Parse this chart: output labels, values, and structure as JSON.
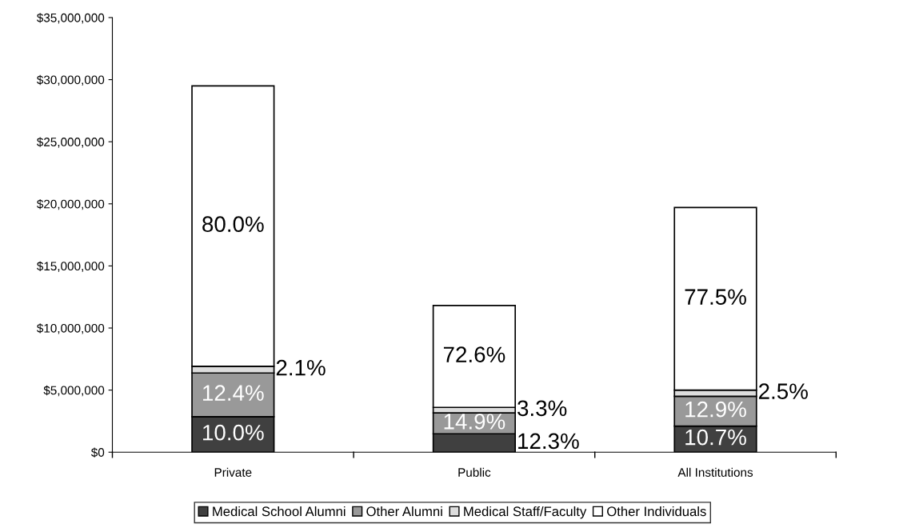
{
  "chart_data": {
    "type": "bar",
    "stacked": true,
    "categories": [
      "Private",
      "Public",
      "All Institutions"
    ],
    "series": [
      {
        "name": "Medical School Alumni",
        "color": "#404040",
        "values": [
          2860000,
          1480000,
          2100000
        ]
      },
      {
        "name": "Other Alumni",
        "color": "#999999",
        "values": [
          3520000,
          1680000,
          2400000
        ]
      },
      {
        "name": "Medical Staff/Faculty",
        "color": "#dddddd",
        "values": [
          540000,
          450000,
          500000
        ]
      },
      {
        "name": "Other Individuals",
        "color": "#ffffff",
        "values": [
          22580000,
          8200000,
          14700000
        ]
      }
    ],
    "annotations": [
      "10.0%",
      "12.4%",
      "2.1%",
      "80.0%",
      "12.3%",
      "14.9%",
      "3.3%",
      "72.6%",
      "10.7%",
      "12.9%",
      "2.5%",
      "77.5%"
    ],
    "ylim": [
      0,
      35000000
    ],
    "yticks": [
      {
        "value": 0,
        "label": "$0"
      },
      {
        "value": 5000000,
        "label": "$5,000,000"
      },
      {
        "value": 10000000,
        "label": "$10,000,000"
      },
      {
        "value": 15000000,
        "label": "$15,000,000"
      },
      {
        "value": 20000000,
        "label": "$20,000,000"
      },
      {
        "value": 25000000,
        "label": "$25,000,000"
      },
      {
        "value": 30000000,
        "label": "$30,000,000"
      },
      {
        "value": 35000000,
        "label": "$35,000,000"
      }
    ],
    "grid": false,
    "legend": "bottom"
  }
}
